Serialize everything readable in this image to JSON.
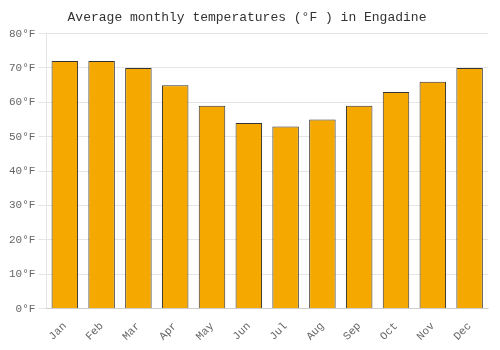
{
  "chart_data": {
    "type": "bar",
    "title": "Average monthly temperatures (°F ) in Engadine",
    "categories": [
      "Jan",
      "Feb",
      "Mar",
      "Apr",
      "May",
      "Jun",
      "Jul",
      "Aug",
      "Sep",
      "Oct",
      "Nov",
      "Dec"
    ],
    "values": [
      72,
      72,
      70,
      65,
      59,
      54,
      53,
      55,
      59,
      63,
      66,
      70
    ],
    "color": "#F5A800",
    "ylim": [
      0,
      80
    ],
    "yticks": [
      {
        "value": 0,
        "label": "0°F"
      },
      {
        "value": 10,
        "label": "10°F"
      },
      {
        "value": 20,
        "label": "20°F"
      },
      {
        "value": 30,
        "label": "30°F"
      },
      {
        "value": 40,
        "label": "40°F"
      },
      {
        "value": 50,
        "label": "50°F"
      },
      {
        "value": 60,
        "label": "60°F"
      },
      {
        "value": 70,
        "label": "70°F"
      },
      {
        "value": 80,
        "label": "80°F"
      }
    ],
    "grid": true
  }
}
